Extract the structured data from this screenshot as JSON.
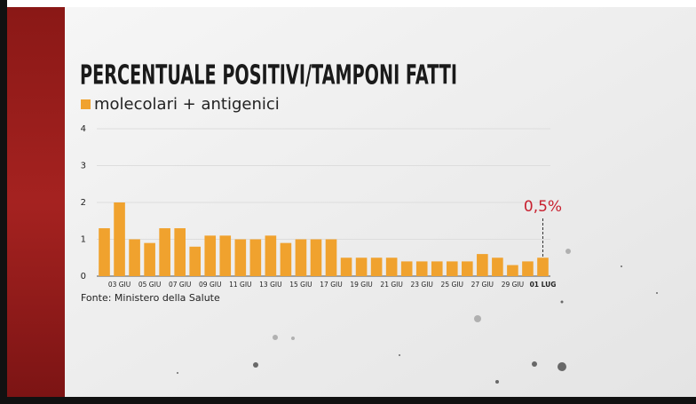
{
  "chart_data": {
    "type": "bar",
    "title": "PERCENTUALE POSITIVI/TAMPONI FATTI",
    "series": [
      {
        "name": "molecolari + antigenici",
        "color": "#f0a22e",
        "values": [
          1.3,
          2.0,
          1.0,
          0.9,
          1.3,
          1.3,
          0.8,
          1.1,
          1.1,
          1.0,
          1.0,
          1.1,
          0.9,
          1.0,
          1.0,
          1.0,
          0.5,
          0.5,
          0.5,
          0.5,
          0.4,
          0.4,
          0.4,
          0.4,
          0.4,
          0.6,
          0.5,
          0.3,
          0.4,
          0.5
        ]
      }
    ],
    "categories": [
      null,
      "03 GIU",
      null,
      "05 GIU",
      null,
      "07 GIU",
      null,
      "09 GIU",
      null,
      "11 GIU",
      null,
      "13 GIU",
      null,
      "15 GIU",
      null,
      "17 GIU",
      null,
      "19 GIU",
      null,
      "21 GIU",
      null,
      "23 GIU",
      null,
      "25 GIU",
      null,
      "27 GIU",
      null,
      "29 GIU",
      null,
      "01 LUG"
    ],
    "ylim": [
      0,
      4
    ],
    "yticks": [
      0,
      1,
      2,
      3,
      4
    ],
    "grid": true,
    "annotation": "0,5%",
    "annotation_color": "#c8202f",
    "source": "Fonte: Ministero della Salute"
  }
}
